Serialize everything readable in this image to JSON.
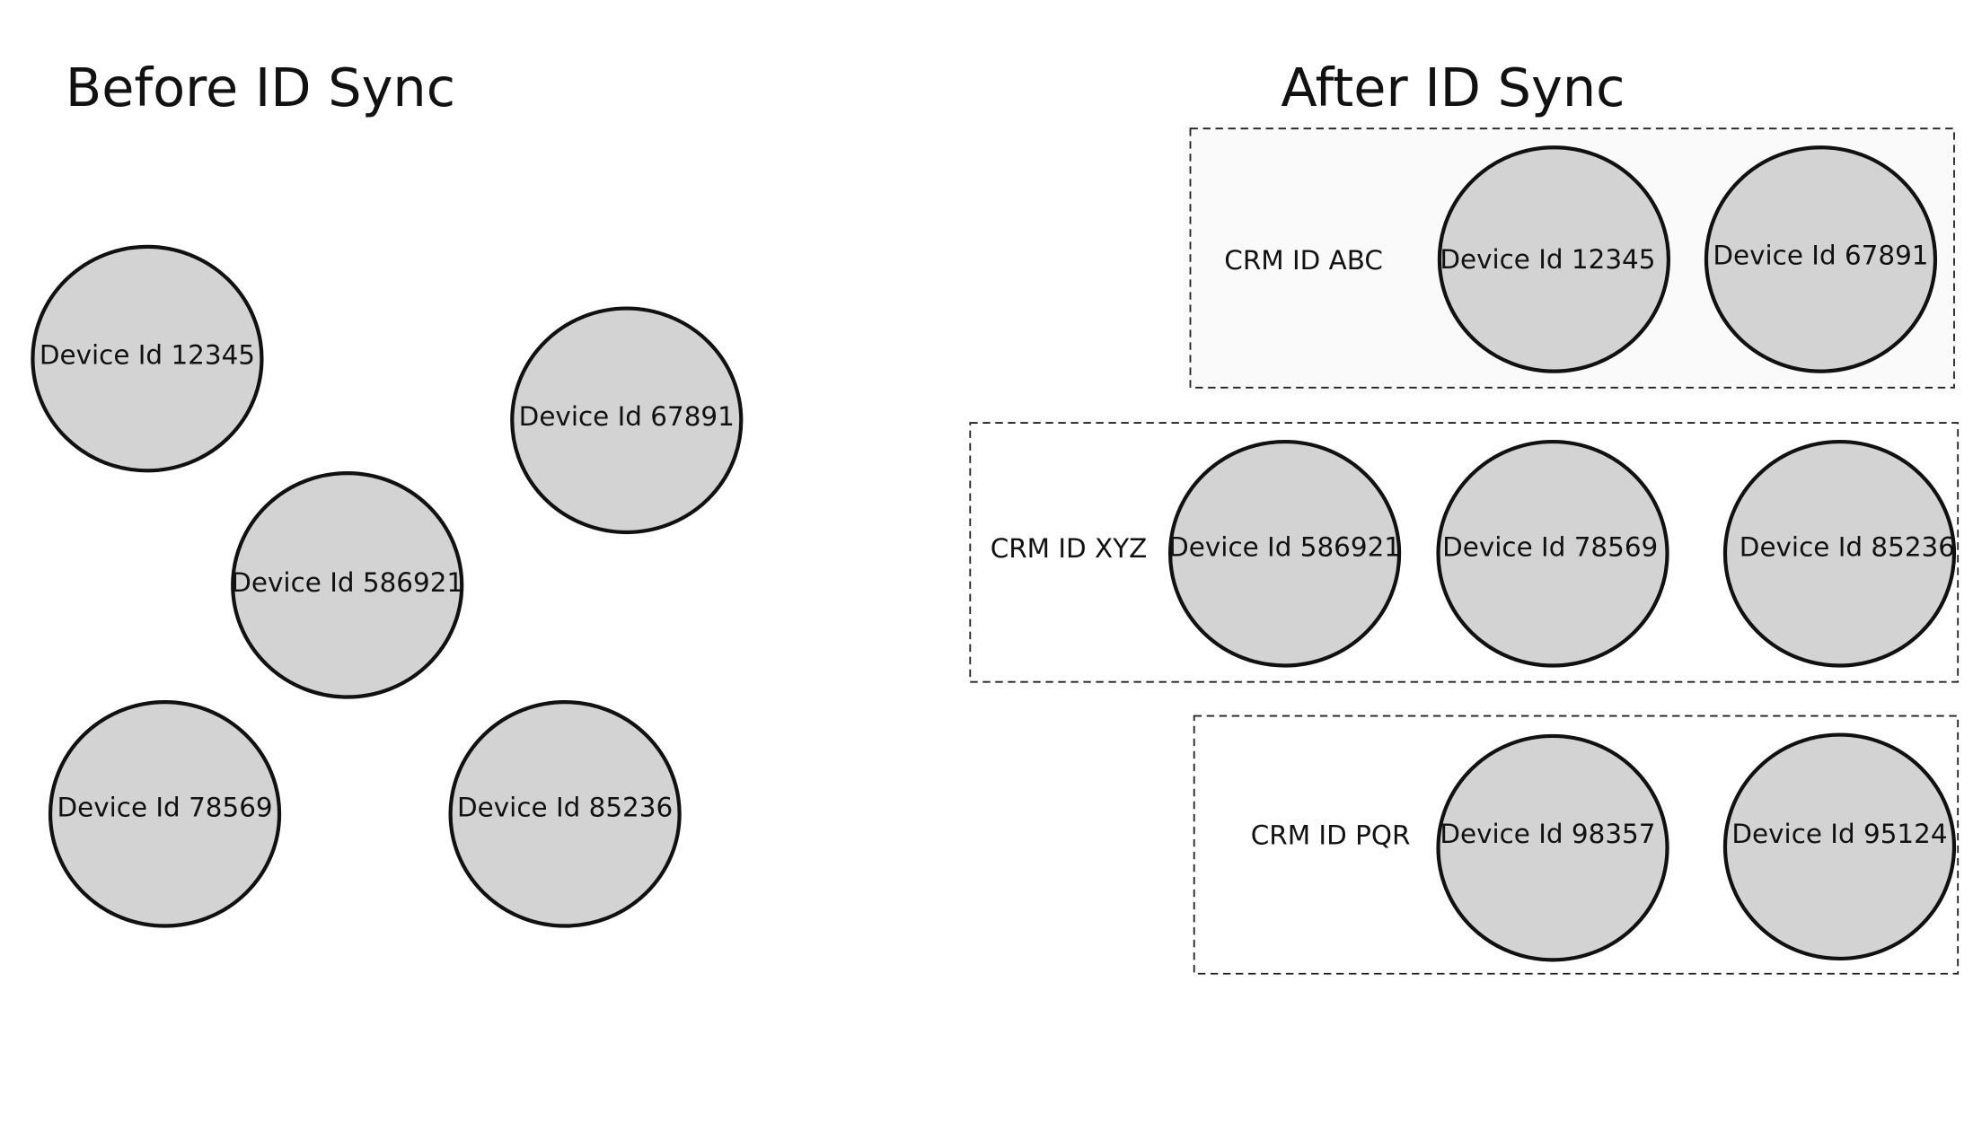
{
  "before": {
    "title": "Before ID Sync",
    "devices": [
      "Device Id 12345",
      "Device Id 67891",
      "Device Id 586921",
      "Device Id 78569",
      "Device Id 85236"
    ]
  },
  "after": {
    "title": "After ID Sync",
    "groups": [
      {
        "label": "CRM ID ABC",
        "devices": [
          "Device Id 12345",
          "Device Id 67891"
        ]
      },
      {
        "label": "CRM ID XYZ",
        "devices": [
          "Device Id 586921",
          "Device Id 78569",
          "Device Id 85236"
        ]
      },
      {
        "label": "CRM ID PQR",
        "devices": [
          "Device Id 98357",
          "Device Id 95124"
        ]
      }
    ]
  },
  "colors": {
    "node_fill": "#d3d3d3",
    "node_stroke": "#111111"
  }
}
